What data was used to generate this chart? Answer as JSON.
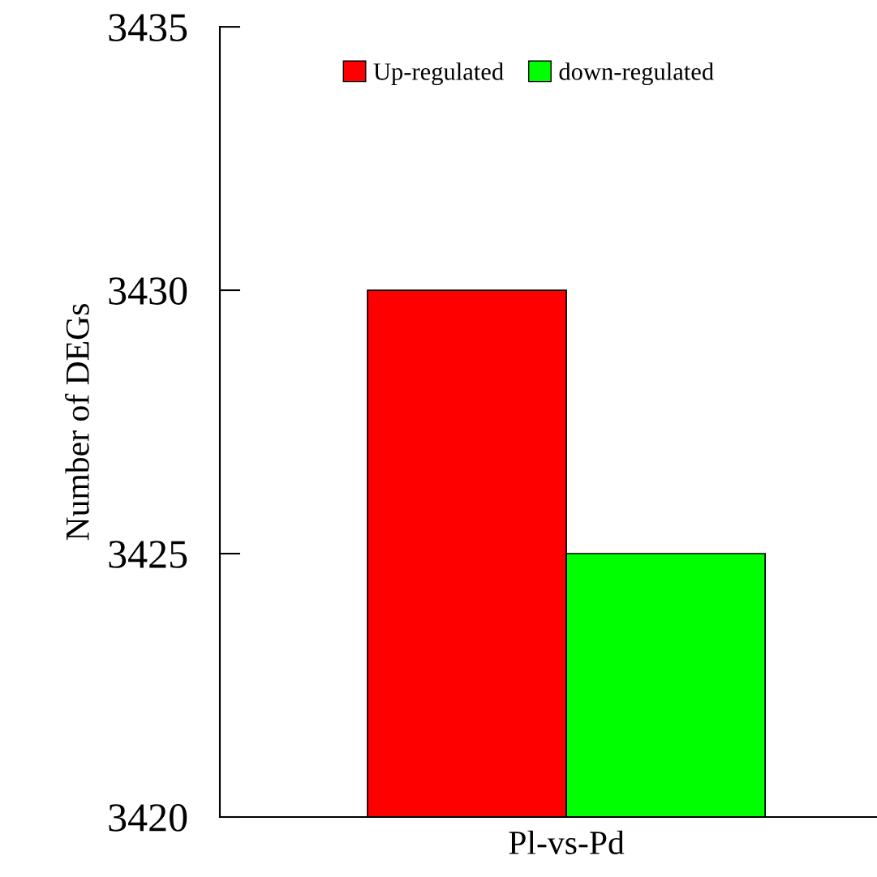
{
  "chart_data": {
    "type": "bar",
    "ylabel": "Number of DEGs",
    "categories": [
      "Pl-vs-Pd"
    ],
    "series": [
      {
        "name": "Up-regulated",
        "color": "#ff0000",
        "values": [
          3430
        ]
      },
      {
        "name": "down-regulated",
        "color": "#00ff00",
        "values": [
          3425
        ]
      }
    ],
    "ylim": [
      3420,
      3435
    ],
    "yticks": [
      3420,
      3425,
      3430,
      3435
    ],
    "grid": false,
    "legend": "top"
  }
}
